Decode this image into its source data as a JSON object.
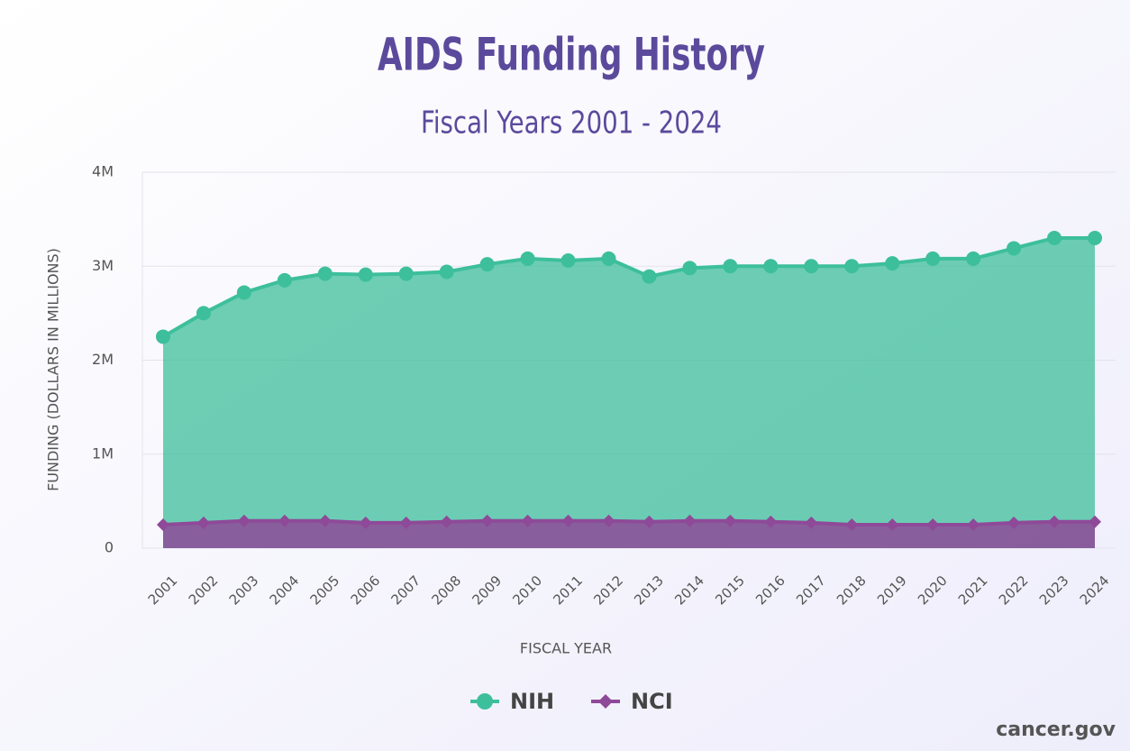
{
  "chart_data": {
    "type": "area",
    "title": "AIDS Funding History",
    "subtitle": "Fiscal Years 2001 - 2024",
    "x_label": "FISCAL YEAR",
    "y_label": "FUNDING (DOLLARS IN MILLIONS)",
    "source": "cancer.gov",
    "categories": [
      "2001",
      "2002",
      "2003",
      "2004",
      "2005",
      "2006",
      "2007",
      "2008",
      "2009",
      "2010",
      "2011",
      "2012",
      "2013",
      "2014",
      "2015",
      "2016",
      "2017",
      "2018",
      "2019",
      "2020",
      "2021",
      "2022",
      "2023",
      "2024"
    ],
    "series": [
      {
        "name": "NIH",
        "color": "#3dbf9b",
        "marker": "circle",
        "values": [
          2250000,
          2500000,
          2720000,
          2850000,
          2920000,
          2910000,
          2920000,
          2940000,
          3020000,
          3080000,
          3060000,
          3080000,
          2890000,
          2980000,
          3000000,
          3000000,
          3000000,
          3000000,
          3030000,
          3080000,
          3080000,
          3190000,
          3300000,
          3300000
        ]
      },
      {
        "name": "NCI",
        "color": "#8e4a98",
        "marker": "diamond",
        "values": [
          250000,
          270000,
          290000,
          290000,
          290000,
          270000,
          270000,
          280000,
          290000,
          290000,
          290000,
          290000,
          280000,
          290000,
          290000,
          280000,
          270000,
          250000,
          250000,
          250000,
          250000,
          270000,
          280000,
          280000
        ]
      }
    ],
    "ylim": [
      0,
      4000000
    ],
    "yticks": [
      {
        "value": 0,
        "label": "0"
      },
      {
        "value": 1000000,
        "label": "1M"
      },
      {
        "value": 2000000,
        "label": "2M"
      },
      {
        "value": 3000000,
        "label": "3M"
      },
      {
        "value": 4000000,
        "label": "4M"
      }
    ],
    "grid": true,
    "legend": "bottom"
  }
}
